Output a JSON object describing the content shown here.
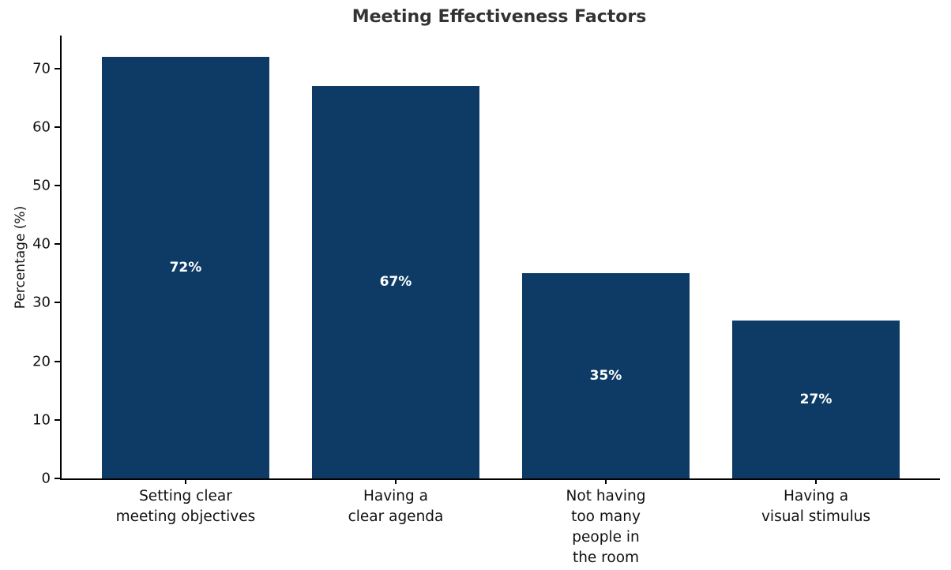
{
  "chart_data": {
    "type": "bar",
    "title": "Meeting Effectiveness Factors",
    "xlabel": "",
    "ylabel": "Percentage (%)",
    "categories": [
      "Setting clear\nmeeting objectives",
      "Having a\nclear agenda",
      "Not having\ntoo many\npeople in\nthe room",
      "Having a\nvisual stimulus"
    ],
    "values": [
      72,
      67,
      35,
      27
    ],
    "bar_labels": [
      "72%",
      "67%",
      "35%",
      "27%"
    ],
    "yticks": [
      0,
      10,
      20,
      30,
      40,
      50,
      60,
      70
    ],
    "ylim": [
      0,
      75.6
    ],
    "bar_width_fraction": 0.8,
    "grid": false,
    "legend": null,
    "colors": {
      "bar_fill": "#0d3b66",
      "bar_value_text": "#ffffff",
      "title_text": "#333333",
      "tick_text": "#111111",
      "axis_line": "#000000",
      "background": "#ffffff"
    }
  }
}
